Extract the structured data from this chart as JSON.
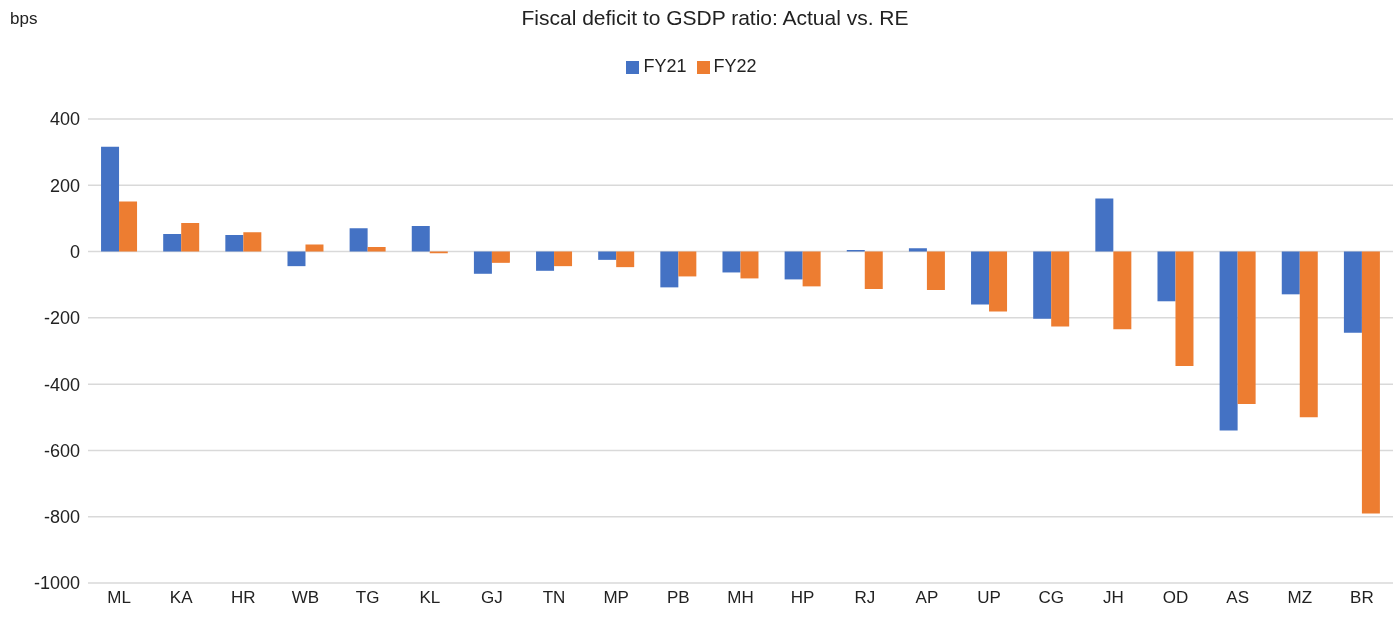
{
  "chart_data": {
    "type": "bar",
    "title": "Fiscal deficit to GSDP ratio: Actual vs. RE",
    "ylabel": "bps",
    "categories": [
      "ML",
      "KA",
      "HR",
      "WB",
      "TG",
      "KL",
      "GJ",
      "TN",
      "MP",
      "PB",
      "MH",
      "HP",
      "RJ",
      "AP",
      "UP",
      "CG",
      "JH",
      "OD",
      "AS",
      "MZ",
      "BR"
    ],
    "series": [
      {
        "name": "FY21",
        "color": "#4472c4",
        "values": [
          316,
          53,
          50,
          -44,
          70,
          77,
          -67,
          -58,
          -25,
          -108,
          -63,
          -84,
          5,
          10,
          -160,
          -203,
          160,
          -150,
          -540,
          -129,
          -245
        ]
      },
      {
        "name": "FY22",
        "color": "#ed7d31",
        "values": [
          151,
          86,
          58,
          21,
          14,
          -5,
          -34,
          -44,
          -47,
          -75,
          -81,
          -105,
          -113,
          -116,
          -181,
          -226,
          -234,
          -345,
          -460,
          -500,
          -790
        ]
      }
    ],
    "ylim": [
      -1000,
      400
    ],
    "yticks": [
      -1000,
      -800,
      -600,
      -400,
      -200,
      0,
      200,
      400
    ],
    "grid": "y",
    "legend": "top"
  }
}
